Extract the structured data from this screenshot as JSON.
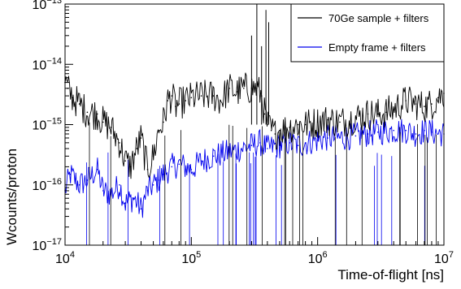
{
  "chart_data": {
    "type": "line",
    "title": "",
    "xlabel": "Time-of-flight [ns]",
    "ylabel": "Wcounts/proton",
    "x_scale": "log",
    "y_scale": "log",
    "xlim": [
      10000,
      10000000
    ],
    "ylim": [
      1e-17,
      1e-13
    ],
    "grid": false,
    "legend_placement": "top-right",
    "x_ticks": [
      {
        "value": 10000,
        "base": "10",
        "exp": "4"
      },
      {
        "value": 100000,
        "base": "10",
        "exp": "5"
      },
      {
        "value": 1000000,
        "base": "10",
        "exp": "6"
      },
      {
        "value": 10000000,
        "base": "10",
        "exp": "7"
      }
    ],
    "y_ticks": [
      {
        "value": 1e-17,
        "base": "10",
        "exp": "−17"
      },
      {
        "value": 1e-16,
        "base": "10",
        "exp": "−16"
      },
      {
        "value": 1e-15,
        "base": "10",
        "exp": "−15"
      },
      {
        "value": 1e-14,
        "base": "10",
        "exp": "−14"
      },
      {
        "value": 1e-13,
        "base": "10",
        "exp": "−13"
      }
    ],
    "series": [
      {
        "name": "70Ge sample + filters",
        "color": "#000000",
        "x": [
          10000,
          10500,
          11500,
          13000,
          15000,
          18000,
          20000,
          23000,
          27000,
          30000,
          33000,
          37000,
          40000,
          45000,
          50000,
          55000,
          60000,
          65000,
          70000,
          75000,
          80000,
          90000,
          100000,
          120000,
          150000,
          170000,
          200000,
          230000,
          260000,
          300000,
          330000,
          360000,
          380000,
          400000,
          430000,
          460000,
          500000,
          600000,
          700000,
          800000,
          1000000,
          1200000,
          1500000,
          2000000,
          2500000,
          3000000,
          3500000,
          4000000,
          5000000,
          6000000,
          7000000,
          8000000,
          9000000,
          10000000
        ],
        "values": [
          5e-15,
          4e-15,
          2.8e-15,
          2.2e-15,
          1.6e-15,
          1.5e-15,
          1.1e-15,
          9e-16,
          5e-16,
          2.5e-16,
          2e-16,
          4e-16,
          6e-16,
          1.8e-16,
          3e-16,
          8e-16,
          1.1e-15,
          2.5e-15,
          3e-15,
          2e-15,
          2.2e-15,
          2.5e-15,
          2.8e-15,
          3e-15,
          3e-15,
          2.5e-15,
          4e-15,
          3.5e-15,
          4e-15,
          4e-15,
          4e-15,
          3e-15,
          1.5e-15,
          1e-15,
          8e-16,
          7e-16,
          8e-16,
          9e-16,
          1e-15,
          1e-15,
          1.1e-15,
          1.2e-15,
          1.1e-15,
          1.3e-15,
          1.5e-15,
          1.5e-15,
          1.6e-15,
          1.8e-15,
          2.5e-15,
          2.2e-15,
          2e-15,
          2.2e-15,
          2.8e-15,
          3.3e-15
        ]
      },
      {
        "name": "Empty frame + filters",
        "color": "#0000ee",
        "x": [
          10000,
          11000,
          13000,
          15000,
          18000,
          20000,
          23000,
          27000,
          30000,
          35000,
          40000,
          45000,
          50000,
          55000,
          60000,
          70000,
          80000,
          100000,
          120000,
          150000,
          200000,
          250000,
          300000,
          350000,
          400000,
          500000,
          600000,
          700000,
          800000,
          1000000,
          1200000,
          1500000,
          2000000,
          2500000,
          3000000,
          4000000,
          5000000,
          6000000,
          7000000,
          8000000,
          10000000
        ],
        "values": [
          8e-17,
          1.5e-16,
          1e-16,
          1.2e-16,
          1.8e-16,
          8e-17,
          7e-17,
          1e-16,
          5e-17,
          6e-17,
          4e-17,
          8e-17,
          1e-16,
          1.2e-16,
          1.5e-16,
          2e-16,
          2.2e-16,
          1.8e-16,
          2.5e-16,
          3e-16,
          3.5e-16,
          4e-16,
          4.5e-16,
          5e-16,
          4e-16,
          4.5e-16,
          5e-16,
          4.5e-16,
          5e-16,
          5.5e-16,
          6e-16,
          6e-16,
          6.5e-16,
          7e-16,
          7.5e-16,
          8e-16,
          8e-16,
          7e-16,
          8e-16,
          7.5e-16,
          7e-16
        ]
      }
    ],
    "spikes": [
      {
        "series": "70Ge sample + filters",
        "x": 300000,
        "peak": 3e-14
      },
      {
        "series": "70Ge sample + filters",
        "x": 330000,
        "peak": 1e-13
      },
      {
        "series": "70Ge sample + filters",
        "x": 360000,
        "peak": 2e-14
      },
      {
        "series": "70Ge sample + filters",
        "x": 390000,
        "peak": 8e-14
      },
      {
        "series": "70Ge sample + filters",
        "x": 410000,
        "peak": 5e-14
      }
    ]
  }
}
